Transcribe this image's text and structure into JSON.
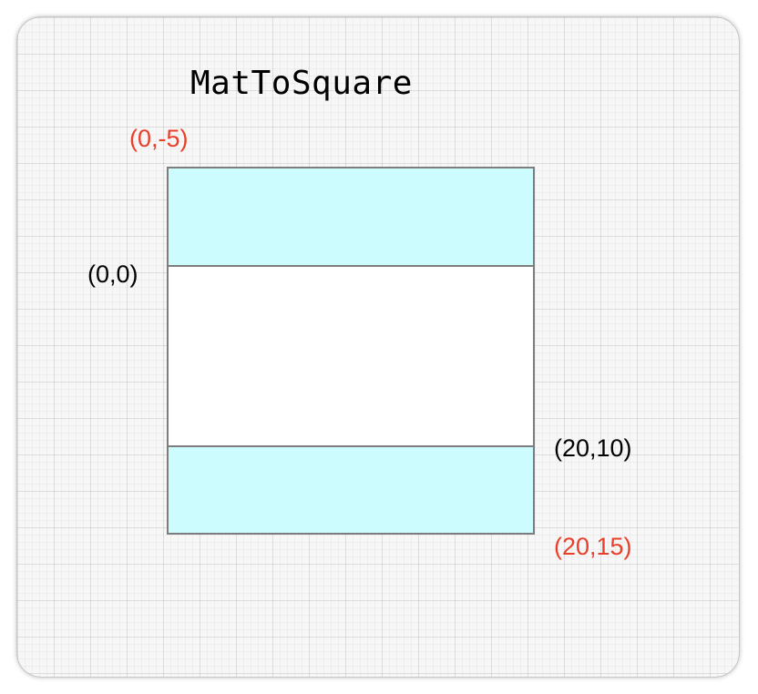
{
  "title": "MatToSquare",
  "labels": {
    "top_padded_corner": "(0,-5)",
    "origin_corner": "(0,0)",
    "original_end_corner": "(20,10)",
    "bottom_padded_corner": "(20,15)"
  },
  "colors": {
    "padding_fill": "#ccfcfd",
    "original_fill": "#ffffff",
    "padded_label_color": "#e8402a",
    "original_label_color": "#000000",
    "outline": "#7d7d7d"
  }
}
